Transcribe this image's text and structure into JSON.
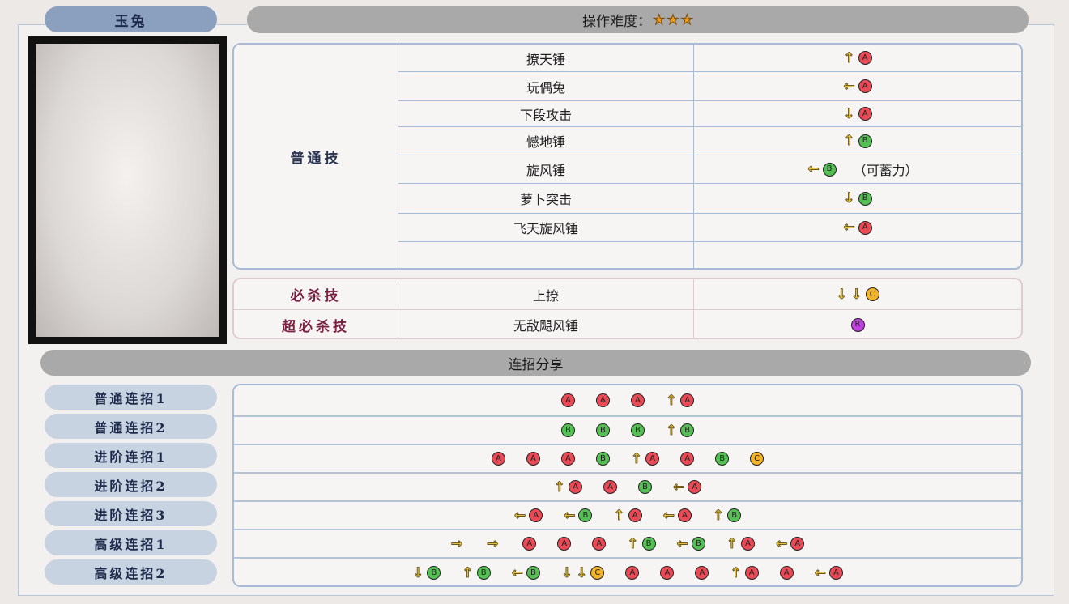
{
  "character": {
    "name": "玉兔"
  },
  "difficulty": {
    "label": "操作难度：",
    "stars": 3,
    "max_stars": 3
  },
  "normal_moves": {
    "category": "普通技",
    "moves": [
      {
        "name": "撩天锤",
        "input": [
          "↑A"
        ]
      },
      {
        "name": "玩偶兔",
        "input": [
          "←A"
        ]
      },
      {
        "name": "下段攻击",
        "input": [
          "↓A"
        ]
      },
      {
        "name": "憾地锤",
        "input": [
          "↑B"
        ]
      },
      {
        "name": "旋风锤",
        "input": [
          "←B"
        ],
        "note": "（可蓄力）"
      },
      {
        "name": "萝卜突击",
        "input": [
          "↓B"
        ]
      },
      {
        "name": "飞天旋风锤",
        "input": [
          "←A"
        ]
      },
      {
        "name": "",
        "input": []
      }
    ]
  },
  "special_moves": [
    {
      "category": "必杀技",
      "name": "上撩",
      "input": [
        "↓↓C"
      ]
    },
    {
      "category": "超必杀技",
      "name": "无敌飓风锤",
      "input": [
        "R"
      ]
    }
  ],
  "combos": {
    "title": "连招分享",
    "items": [
      {
        "label": "普通连招1",
        "input": [
          "A",
          "A",
          "A",
          "↑A"
        ]
      },
      {
        "label": "普通连招2",
        "input": [
          "B",
          "B",
          "B",
          "↑B"
        ]
      },
      {
        "label": "进阶连招1",
        "input": [
          "A",
          "A",
          "A",
          "B",
          "↑A",
          "A",
          "B",
          "C"
        ]
      },
      {
        "label": "进阶连招2",
        "input": [
          "↑A",
          "A",
          "B",
          "←A"
        ]
      },
      {
        "label": "进阶连招3",
        "input": [
          "←A",
          "←B",
          "↑A",
          "←A",
          "↑B"
        ]
      },
      {
        "label": "高级连招1",
        "input": [
          "→",
          "→",
          "A",
          "A",
          "A",
          "↑B",
          "←B",
          "↑A",
          "←A"
        ]
      },
      {
        "label": "高级连招2",
        "input": [
          "↓B",
          "↑B",
          "←B",
          "↓↓C",
          "A",
          "A",
          "A",
          "↑A",
          "A",
          "←A"
        ]
      }
    ]
  },
  "colors": {
    "A": "#e94a55",
    "B": "#54c054",
    "C": "#f2b22a",
    "R": "#c040e0",
    "arrow": "#e5c040",
    "header_blue": "#8aa0be",
    "header_grey": "#a9a9a9"
  }
}
